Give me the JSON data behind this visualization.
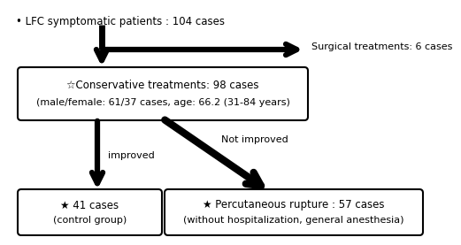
{
  "bg_color": "#ffffff",
  "text_color": "#000000",
  "box_color": "#ffffff",
  "box_edge_color": "#000000",
  "bullet_text": "• LFC symptomatic patients : 104 cases",
  "surgical_text": "Surgical treatments: 6 cases",
  "conservative_line1": "☆Conservative treatments: 98 cases",
  "conservative_line2": "(male/female: 61/37 cases, age: 66.2 (31-84 years)",
  "improved_label": "improved",
  "not_improved_label": "Not improved",
  "left_box_line1": "★ 41 cases",
  "left_box_line2": "(control group)",
  "right_box_line1": "★ Percutaneous rupture : 57 cases",
  "right_box_line2": "(without hospitalization, general anesthesia)",
  "fontsize": 8.5,
  "small_fontsize": 8.0
}
